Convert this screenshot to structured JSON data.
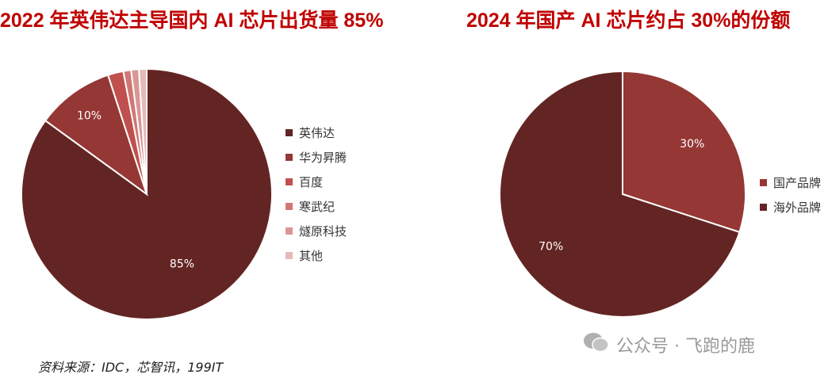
{
  "chart_data": [
    {
      "type": "pie",
      "title": "2022 年英伟达主导国内 AI 芯片出货量 85%",
      "categories": [
        "英伟达",
        "华为昇腾",
        "百度",
        "寒武纪",
        "燧原科技",
        "其他"
      ],
      "values": [
        85,
        10,
        2,
        1,
        1,
        1
      ],
      "data_labels": [
        "85%",
        "10%",
        "",
        "",
        "",
        ""
      ],
      "colors": [
        "#632523",
        "#953735",
        "#c0504d",
        "#d07774",
        "#d99694",
        "#e6b9b8"
      ],
      "legend_position": "right",
      "start_angle": "top, clockwise"
    },
    {
      "type": "pie",
      "title": "2024 年国产 AI 芯片约占 30%的份额",
      "categories": [
        "国产品牌",
        "海外品牌"
      ],
      "values": [
        30,
        70
      ],
      "data_labels": [
        "30%",
        "70%"
      ],
      "colors": [
        "#953735",
        "#632523"
      ],
      "legend_position": "right",
      "start_angle": "top, clockwise"
    }
  ],
  "source": "资料来源：IDC，芯智讯，199IT",
  "watermark": "公众号 · 飞跑的鹿"
}
